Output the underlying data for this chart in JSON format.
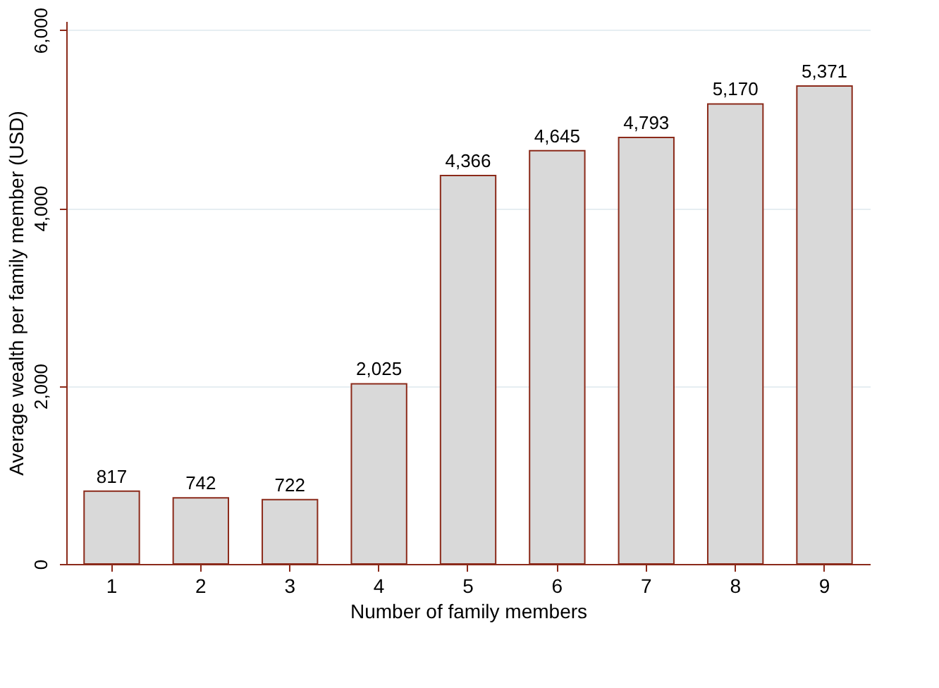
{
  "chart_data": {
    "type": "bar",
    "xlabel": "Number of family members",
    "ylabel": "Average wealth per family member (USD)",
    "categories": [
      "1",
      "2",
      "3",
      "4",
      "5",
      "6",
      "7",
      "8",
      "9"
    ],
    "values": [
      817,
      742,
      722,
      2025,
      4366,
      4645,
      4793,
      5170,
      5371
    ],
    "color": "#d9d9d9",
    "ylim": [
      0,
      6100
    ],
    "yticks": [
      {
        "value": 0,
        "label": "0"
      },
      {
        "value": 2000,
        "label": "2,000"
      },
      {
        "value": 4000,
        "label": "4,000"
      },
      {
        "value": 6000,
        "label": "6,000"
      }
    ],
    "grid": "y",
    "value_labels": [
      "817",
      "742",
      "722",
      "2,025",
      "4,366",
      "4,645",
      "4,793",
      "5,170",
      "5,371"
    ]
  }
}
